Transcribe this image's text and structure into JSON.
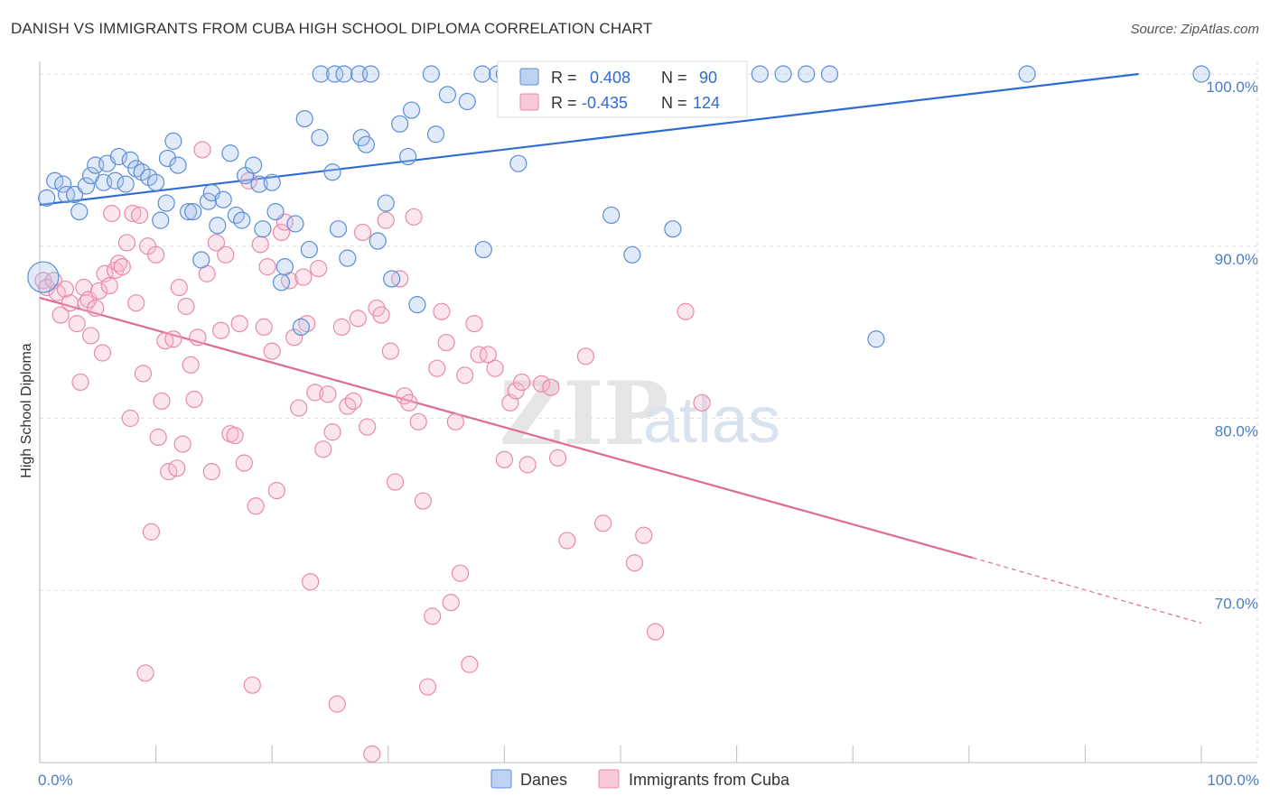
{
  "title": "DANISH VS IMMIGRANTS FROM CUBA HIGH SCHOOL DIPLOMA CORRELATION CHART",
  "source": "Source: ZipAtlas.com",
  "watermark": {
    "zip": "ZIP",
    "atlas": "atlas"
  },
  "legend_top": {
    "r_label": "R =",
    "n_label": "N =",
    "rows": [
      {
        "r": "0.408",
        "n": "90",
        "color": "#a8c4ec"
      },
      {
        "r": "-0.435",
        "n": "124",
        "color": "#f5b8cb"
      }
    ]
  },
  "legend_bottom": [
    {
      "label": "Danes",
      "color": "#a8c4ec"
    },
    {
      "label": "Immigrants from Cuba",
      "color": "#f5b8cb"
    }
  ],
  "colors": {
    "danes_stroke": "#5b8dd6",
    "cuba_stroke": "#e98aa8",
    "danes_line": "#2f6bd4",
    "cuba_line": "#e06a94",
    "grid": "#e0e0e0",
    "tick_text": "#4a7dc4"
  },
  "chart_data": {
    "type": "scatter",
    "title": "DANISH VS IMMIGRANTS FROM CUBA HIGH SCHOOL DIPLOMA CORRELATION CHART",
    "xlabel": "",
    "ylabel": "High School Diploma",
    "xlim": [
      0,
      100
    ],
    "ylim": [
      60,
      100.5
    ],
    "x_tick_labels": [
      "0.0%",
      "100.0%"
    ],
    "y_ticks": [
      70,
      80,
      90,
      100
    ],
    "y_tick_labels": [
      "70.0%",
      "80.0%",
      "90.0%",
      "100.0%"
    ],
    "grid": true,
    "legend_position": "top-center",
    "series": [
      {
        "name": "Danes",
        "R": 0.408,
        "N": 90,
        "trend": {
          "x": [
            0,
            94.6
          ],
          "y": [
            92.4,
            100
          ]
        },
        "points": [
          [
            0.6,
            92.8
          ],
          [
            1.3,
            93.8
          ],
          [
            2.0,
            93.6
          ],
          [
            2.3,
            93.0
          ],
          [
            3.0,
            93.0
          ],
          [
            3.4,
            92.0
          ],
          [
            4.0,
            93.5
          ],
          [
            4.4,
            94.1
          ],
          [
            4.8,
            94.7
          ],
          [
            5.5,
            93.7
          ],
          [
            5.8,
            94.8
          ],
          [
            6.5,
            93.8
          ],
          [
            6.8,
            95.2
          ],
          [
            7.4,
            93.6
          ],
          [
            7.8,
            95.0
          ],
          [
            8.3,
            94.5
          ],
          [
            8.8,
            94.3
          ],
          [
            9.4,
            94.0
          ],
          [
            10.0,
            93.7
          ],
          [
            10.4,
            91.5
          ],
          [
            10.9,
            92.5
          ],
          [
            11.0,
            95.1
          ],
          [
            11.5,
            96.1
          ],
          [
            11.9,
            94.7
          ],
          [
            12.8,
            92.0
          ],
          [
            13.2,
            92.0
          ],
          [
            13.9,
            89.2
          ],
          [
            14.5,
            92.6
          ],
          [
            14.8,
            93.1
          ],
          [
            15.3,
            91.2
          ],
          [
            15.8,
            92.7
          ],
          [
            16.4,
            95.4
          ],
          [
            16.9,
            91.8
          ],
          [
            17.4,
            91.5
          ],
          [
            17.7,
            94.1
          ],
          [
            18.4,
            94.7
          ],
          [
            18.9,
            93.6
          ],
          [
            19.2,
            91.0
          ],
          [
            20.0,
            93.7
          ],
          [
            20.3,
            92.0
          ],
          [
            20.8,
            87.9
          ],
          [
            21.1,
            88.8
          ],
          [
            22.0,
            91.3
          ],
          [
            22.5,
            85.3
          ],
          [
            22.8,
            97.4
          ],
          [
            23.2,
            89.8
          ],
          [
            24.1,
            96.3
          ],
          [
            24.2,
            100
          ],
          [
            25.2,
            94.3
          ],
          [
            25.4,
            100
          ],
          [
            25.7,
            91.0
          ],
          [
            26.2,
            100
          ],
          [
            26.5,
            89.3
          ],
          [
            27.5,
            100
          ],
          [
            27.7,
            96.3
          ],
          [
            28.1,
            95.9
          ],
          [
            28.5,
            100
          ],
          [
            29.1,
            90.3
          ],
          [
            29.8,
            92.5
          ],
          [
            30.3,
            88.1
          ],
          [
            31.0,
            97.1
          ],
          [
            31.7,
            95.2
          ],
          [
            32.0,
            97.9
          ],
          [
            32.5,
            86.6
          ],
          [
            33.7,
            100
          ],
          [
            34.1,
            96.5
          ],
          [
            35.1,
            98.8
          ],
          [
            36.8,
            98.4
          ],
          [
            38.1,
            100
          ],
          [
            38.2,
            89.8
          ],
          [
            39.4,
            100
          ],
          [
            40.0,
            100
          ],
          [
            41.2,
            94.8
          ],
          [
            43.1,
            100
          ],
          [
            43.5,
            100
          ],
          [
            45.2,
            100
          ],
          [
            46.0,
            100
          ],
          [
            49.0,
            100
          ],
          [
            49.2,
            91.8
          ],
          [
            49.5,
            100
          ],
          [
            51.0,
            89.5
          ],
          [
            54.1,
            100
          ],
          [
            54.5,
            91.0
          ],
          [
            62.0,
            100
          ],
          [
            64.0,
            100
          ],
          [
            66.0,
            100
          ],
          [
            68.0,
            100
          ],
          [
            72.0,
            84.6
          ],
          [
            85.0,
            100
          ],
          [
            100.0,
            100
          ]
        ]
      },
      {
        "name": "Immigrants from Cuba",
        "R": -0.435,
        "N": 124,
        "trend": {
          "x": [
            0,
            80.3,
            100
          ],
          "y": [
            87.0,
            71.9,
            68.1
          ]
        },
        "points": [
          [
            0.3,
            88.0
          ],
          [
            0.6,
            87.6
          ],
          [
            1.2,
            88.0
          ],
          [
            1.5,
            87.3
          ],
          [
            1.8,
            86.0
          ],
          [
            2.2,
            87.5
          ],
          [
            2.6,
            86.7
          ],
          [
            3.2,
            85.5
          ],
          [
            3.5,
            82.1
          ],
          [
            3.8,
            87.6
          ],
          [
            4.0,
            86.7
          ],
          [
            4.2,
            86.9
          ],
          [
            4.4,
            84.8
          ],
          [
            4.8,
            86.4
          ],
          [
            5.1,
            87.4
          ],
          [
            5.4,
            83.8
          ],
          [
            5.6,
            88.4
          ],
          [
            6.0,
            87.7
          ],
          [
            6.2,
            91.9
          ],
          [
            6.5,
            88.6
          ],
          [
            6.8,
            89.0
          ],
          [
            7.1,
            88.8
          ],
          [
            7.5,
            90.2
          ],
          [
            7.8,
            80.0
          ],
          [
            8.0,
            91.9
          ],
          [
            8.3,
            86.7
          ],
          [
            8.6,
            91.8
          ],
          [
            8.9,
            82.6
          ],
          [
            9.1,
            65.2
          ],
          [
            9.3,
            90.0
          ],
          [
            9.6,
            73.4
          ],
          [
            10.0,
            89.5
          ],
          [
            10.2,
            78.9
          ],
          [
            10.5,
            81.0
          ],
          [
            10.8,
            84.5
          ],
          [
            11.1,
            76.9
          ],
          [
            11.5,
            84.6
          ],
          [
            11.8,
            77.1
          ],
          [
            12.0,
            87.6
          ],
          [
            12.3,
            78.5
          ],
          [
            12.6,
            86.5
          ],
          [
            13.0,
            83.1
          ],
          [
            13.3,
            81.1
          ],
          [
            13.6,
            84.7
          ],
          [
            14.0,
            95.6
          ],
          [
            14.4,
            88.4
          ],
          [
            14.8,
            76.9
          ],
          [
            15.2,
            90.2
          ],
          [
            15.6,
            85.1
          ],
          [
            16.0,
            89.5
          ],
          [
            16.4,
            79.1
          ],
          [
            16.8,
            79.0
          ],
          [
            17.2,
            85.5
          ],
          [
            17.6,
            77.4
          ],
          [
            18.0,
            93.8
          ],
          [
            18.3,
            64.5
          ],
          [
            18.6,
            74.9
          ],
          [
            19.0,
            90.1
          ],
          [
            19.3,
            85.3
          ],
          [
            19.6,
            88.8
          ],
          [
            20.0,
            83.9
          ],
          [
            20.4,
            75.8
          ],
          [
            20.8,
            90.8
          ],
          [
            21.1,
            91.4
          ],
          [
            21.5,
            88.0
          ],
          [
            21.9,
            84.7
          ],
          [
            22.3,
            80.6
          ],
          [
            22.7,
            88.2
          ],
          [
            23.0,
            85.5
          ],
          [
            23.3,
            70.5
          ],
          [
            23.7,
            81.5
          ],
          [
            24.0,
            88.7
          ],
          [
            24.4,
            78.2
          ],
          [
            24.8,
            81.4
          ],
          [
            25.2,
            79.2
          ],
          [
            25.6,
            63.4
          ],
          [
            26.0,
            85.3
          ],
          [
            26.5,
            80.7
          ],
          [
            27.0,
            81.0
          ],
          [
            27.4,
            85.8
          ],
          [
            27.8,
            90.8
          ],
          [
            28.2,
            79.5
          ],
          [
            28.6,
            60.5
          ],
          [
            29.0,
            86.4
          ],
          [
            29.4,
            86.0
          ],
          [
            29.8,
            91.5
          ],
          [
            30.2,
            83.9
          ],
          [
            30.6,
            76.3
          ],
          [
            31.0,
            88.1
          ],
          [
            31.4,
            81.3
          ],
          [
            31.8,
            80.9
          ],
          [
            32.2,
            91.7
          ],
          [
            32.6,
            79.8
          ],
          [
            33.0,
            75.2
          ],
          [
            33.4,
            64.4
          ],
          [
            33.8,
            68.5
          ],
          [
            34.2,
            82.9
          ],
          [
            34.6,
            86.2
          ],
          [
            35.0,
            84.4
          ],
          [
            35.4,
            69.3
          ],
          [
            35.8,
            79.8
          ],
          [
            36.2,
            71.0
          ],
          [
            36.6,
            82.5
          ],
          [
            37.0,
            65.7
          ],
          [
            37.4,
            85.5
          ],
          [
            37.8,
            83.7
          ],
          [
            38.6,
            83.7
          ],
          [
            39.2,
            82.9
          ],
          [
            40.0,
            77.6
          ],
          [
            40.5,
            80.9
          ],
          [
            41.0,
            81.6
          ],
          [
            41.5,
            82.1
          ],
          [
            42.0,
            77.3
          ],
          [
            43.2,
            82.0
          ],
          [
            44.0,
            81.8
          ],
          [
            44.6,
            77.7
          ],
          [
            45.4,
            72.9
          ],
          [
            47.0,
            83.6
          ],
          [
            48.5,
            73.9
          ],
          [
            51.2,
            71.6
          ],
          [
            52.0,
            73.2
          ],
          [
            53.0,
            67.6
          ],
          [
            55.6,
            86.2
          ],
          [
            57.0,
            80.9
          ]
        ]
      }
    ]
  }
}
